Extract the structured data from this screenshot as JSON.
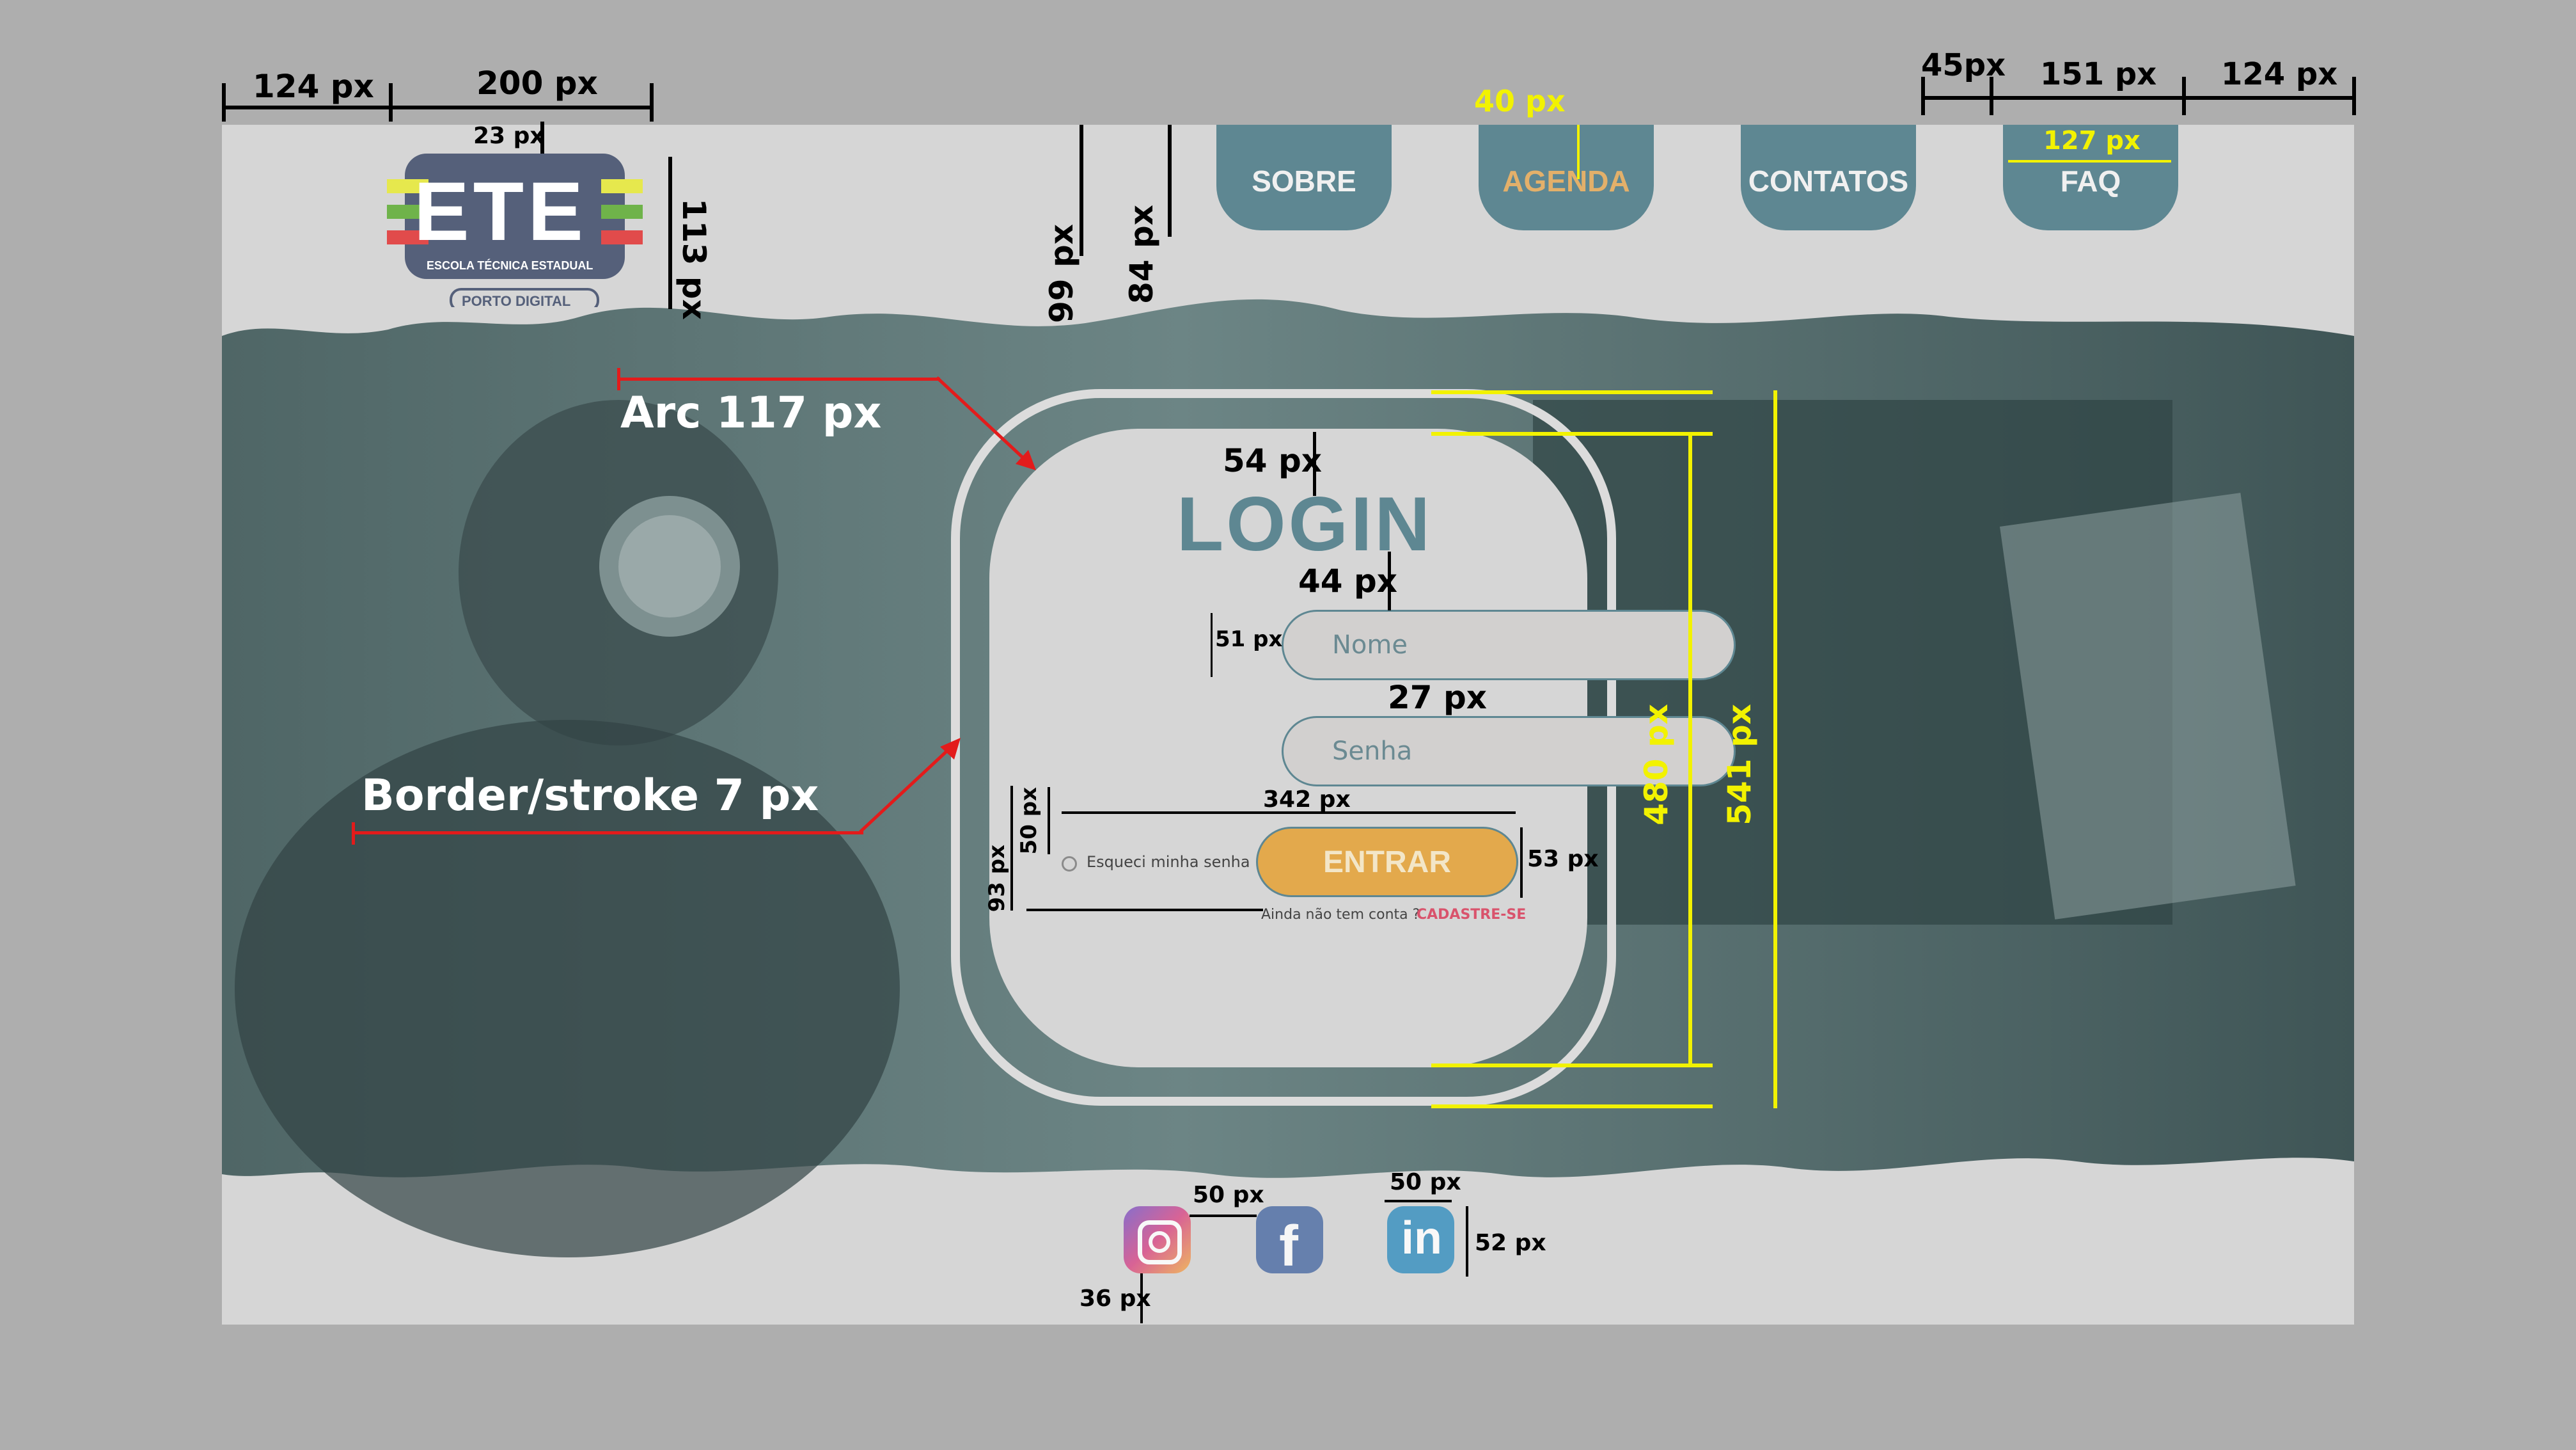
{
  "nav": {
    "items": [
      {
        "label": "SOBRE"
      },
      {
        "label": "AGENDA"
      },
      {
        "label": "CONTATOS"
      },
      {
        "label": "FAQ"
      }
    ]
  },
  "logo": {
    "text": "ETE",
    "subtitle": "ESCOLA TÉCNICA ESTADUAL",
    "tag": "PORTO DIGITAL"
  },
  "login": {
    "title": "LOGIN",
    "name_placeholder": "Nome",
    "password_placeholder": "Senha",
    "forgot_label": "Esqueci minha senha",
    "submit_label": "ENTRAR",
    "signup_prompt": "Ainda não tem conta ?",
    "signup_link": "CADASTRE-SE"
  },
  "social": [
    "instagram-icon",
    "facebook-icon",
    "linkedin-icon"
  ],
  "annotations": {
    "margin_left": "124 px",
    "logo_width": "200 px",
    "logo_top": "23 px",
    "logo_height": "113 px",
    "header_height": "99 px",
    "nav_height": "84 px",
    "nav_top": "40 px",
    "nav_gap": "45px",
    "nav_width": "151 px",
    "nav_inner": "127 px",
    "margin_right": "124 px",
    "arc": "Arc 117 px",
    "stroke": "Border/stroke 7 px",
    "title_top": "54 px",
    "title_gap": "44 px",
    "input_height": "51 px",
    "input_gap": "27 px",
    "form_width": "342 px",
    "checkbox_gap": "50 px",
    "bottom_gap": "93 px",
    "button_height": "53 px",
    "inner_height": "480 px",
    "outer_height": "541 px",
    "icon_gap1": "50 px",
    "icon_gap2": "50 px",
    "icon_size": "52 px",
    "icon_bottom": "36 px"
  },
  "colors": {
    "page_bg": "#d6d6d6",
    "hero": "#5f7777",
    "teal": "#5e8792",
    "accent": "#e3a94c",
    "link": "#d9536c"
  }
}
